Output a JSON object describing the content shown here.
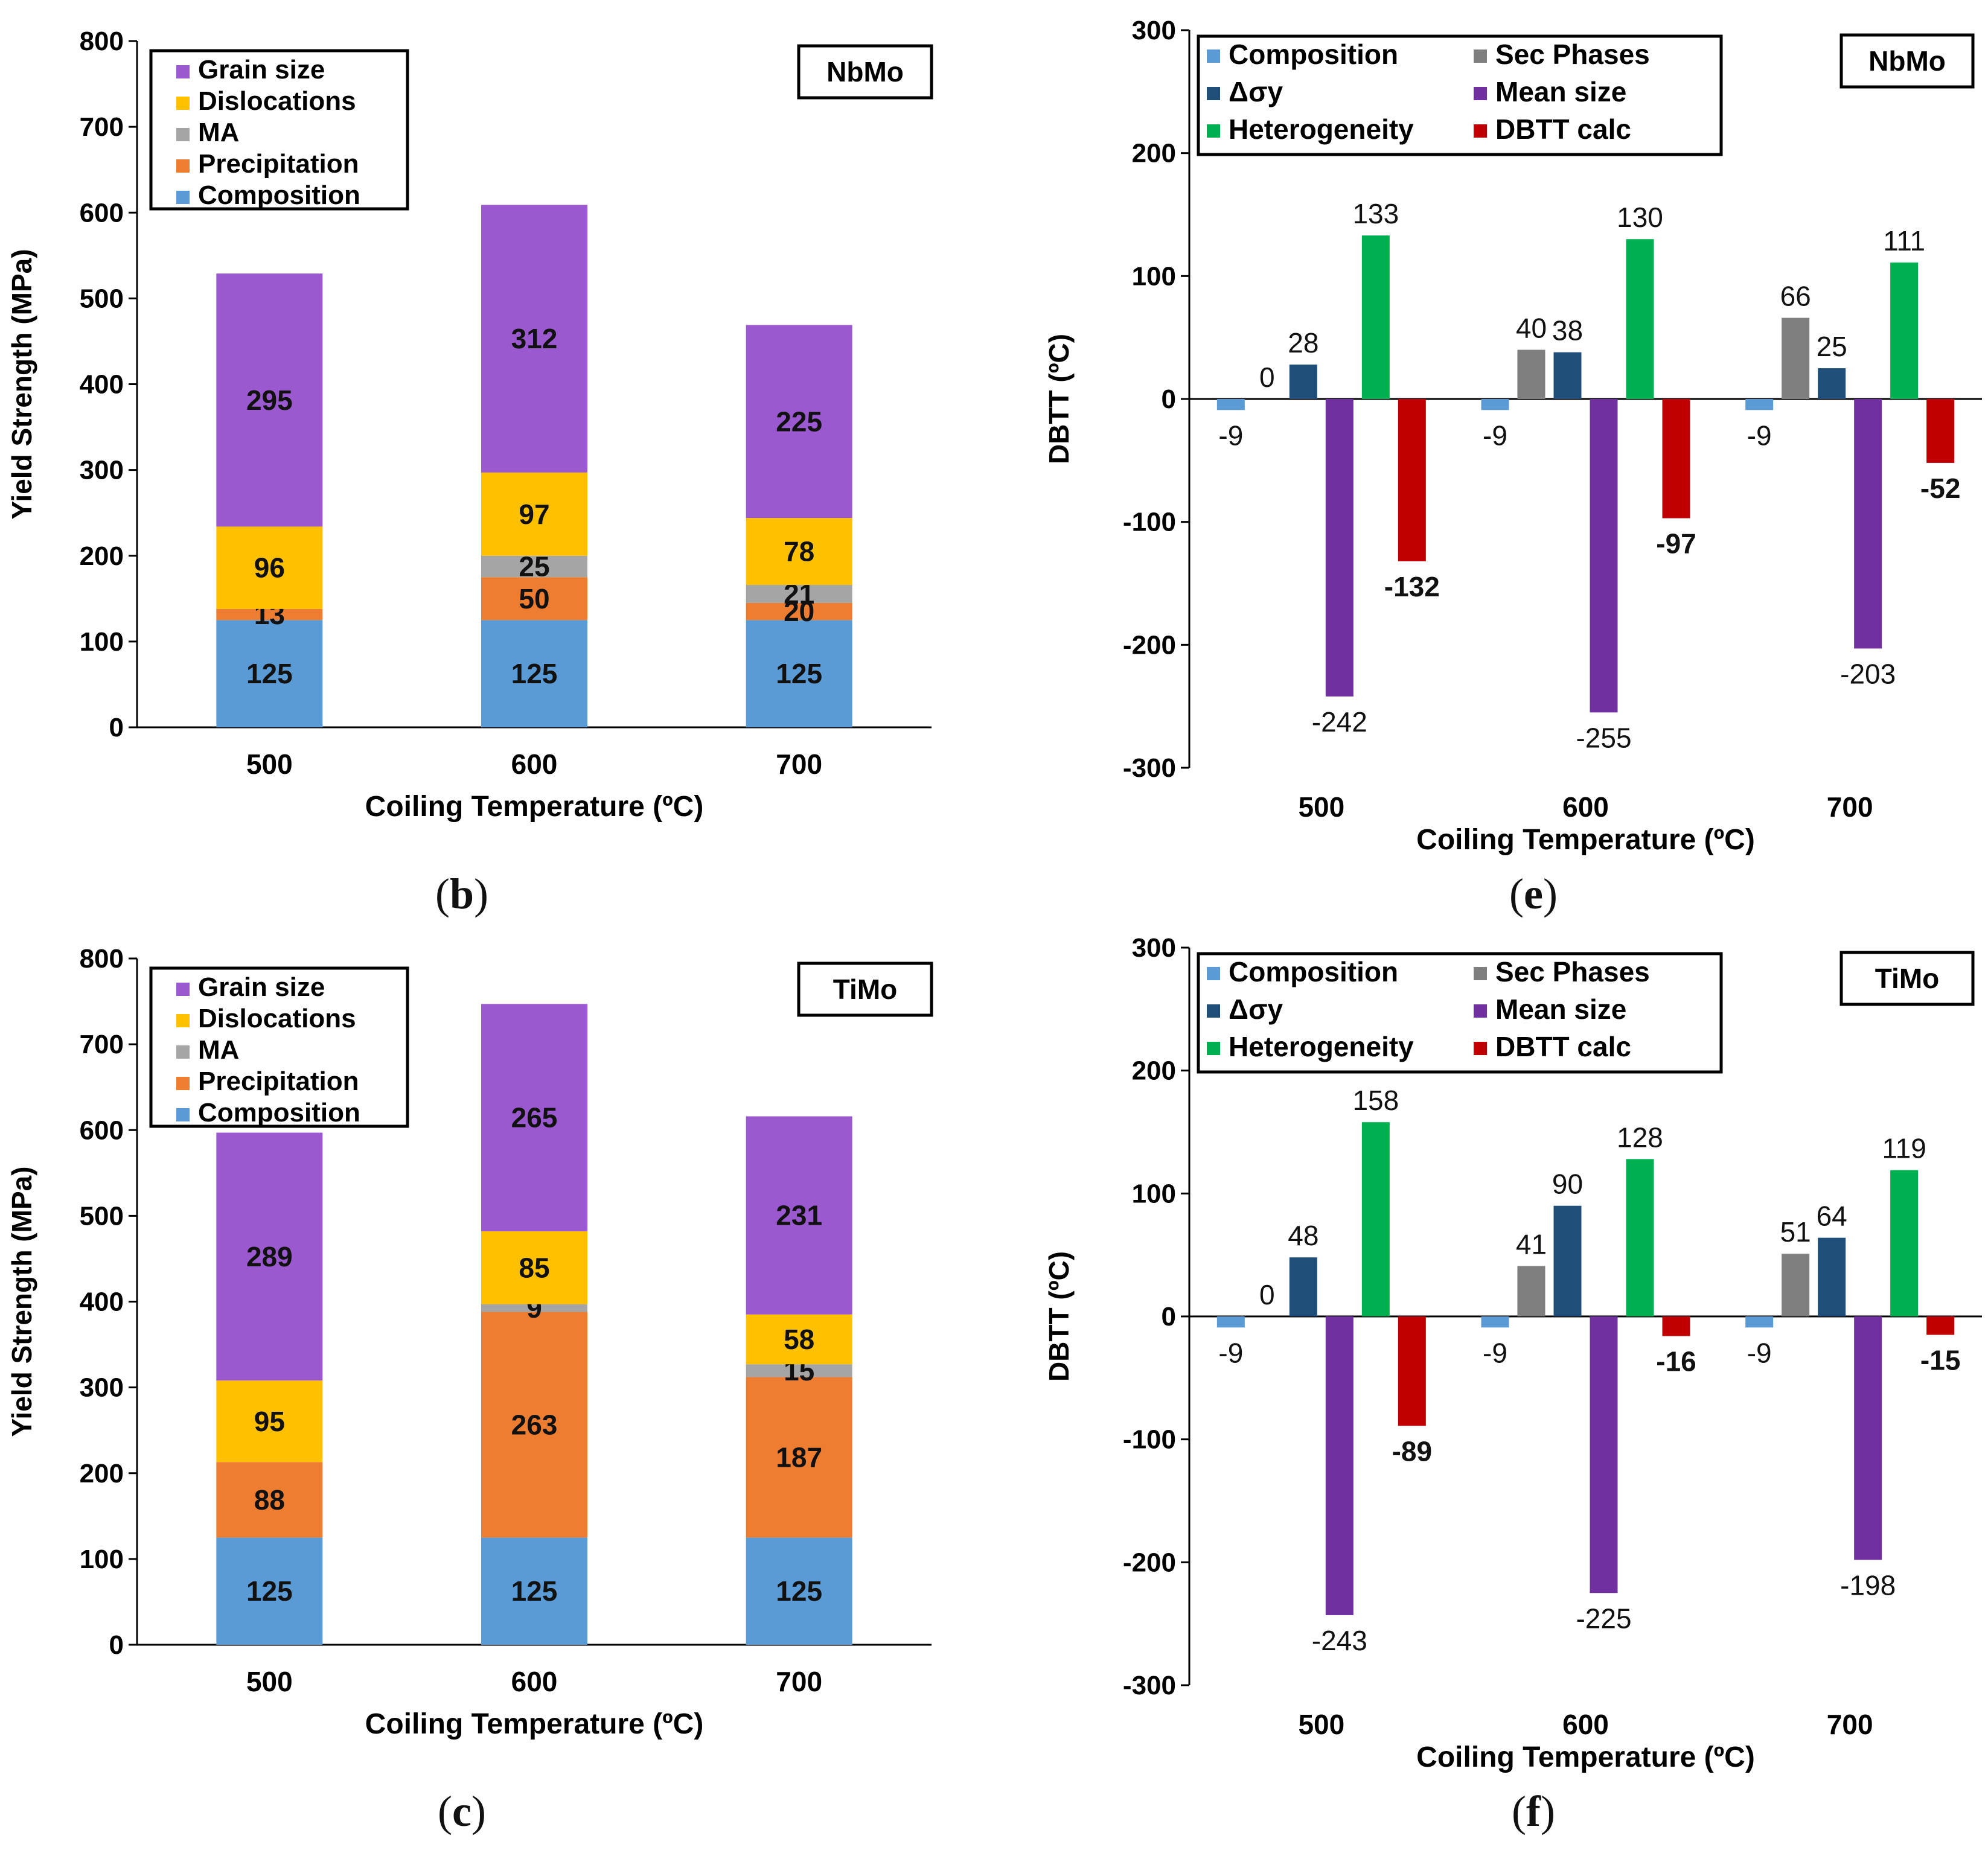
{
  "figure": {
    "captions": [
      {
        "open": "(",
        "letter": "b",
        "close": ")"
      },
      {
        "open": "(",
        "letter": "e",
        "close": ")"
      },
      {
        "open": "(",
        "letter": "c",
        "close": ")"
      },
      {
        "open": "(",
        "letter": "f",
        "close": ")"
      }
    ]
  },
  "chart_data": [
    {
      "id": "b",
      "type": "bar",
      "stacked": true,
      "tag": "NbMo",
      "xlabel": "Coiling Temperature (ºC)",
      "ylabel": "Yield Strength (MPa)",
      "ylim": [
        0,
        800
      ],
      "yticks": [
        0,
        100,
        200,
        300,
        400,
        500,
        600,
        700,
        800
      ],
      "categories": [
        "500",
        "600",
        "700"
      ],
      "legend": [
        "Grain size",
        "Dislocations",
        "MA",
        "Precipitation",
        "Composition"
      ],
      "series": [
        {
          "name": "Composition",
          "color": "#5B9BD5",
          "values": [
            125,
            125,
            125
          ]
        },
        {
          "name": "Precipitation",
          "color": "#ED7D31",
          "values": [
            13,
            50,
            20
          ]
        },
        {
          "name": "MA",
          "color": "#A5A5A5",
          "values": [
            0,
            25,
            21
          ]
        },
        {
          "name": "Dislocations",
          "color": "#FFC000",
          "values": [
            96,
            97,
            78
          ]
        },
        {
          "name": "Grain size",
          "color": "#9B59D0",
          "values": [
            295,
            312,
            225
          ]
        }
      ]
    },
    {
      "id": "e",
      "type": "bar",
      "tag": "NbMo",
      "xlabel": "Coiling Temperature (ºC)",
      "ylabel": "DBTT (ºC)",
      "ylim": [
        -300,
        300
      ],
      "yticks": [
        -300,
        -200,
        -100,
        0,
        100,
        200,
        300
      ],
      "categories": [
        "500",
        "600",
        "700"
      ],
      "legend": [
        "Composition",
        "Sec Phases",
        "Δσy",
        "Mean size",
        "Heterogeneity",
        "DBTT calc"
      ],
      "series": [
        {
          "name": "Composition",
          "color": "#5B9BD5",
          "values": [
            -9,
            -9,
            -9
          ]
        },
        {
          "name": "Sec Phases",
          "color": "#7F7F7F",
          "values": [
            0,
            40,
            66
          ]
        },
        {
          "name": "Δσy",
          "color": "#1F4E79",
          "values": [
            28,
            38,
            25
          ]
        },
        {
          "name": "Mean size",
          "color": "#7030A0",
          "values": [
            -242,
            -255,
            -203
          ]
        },
        {
          "name": "Heterogeneity",
          "color": "#00B050",
          "values": [
            133,
            130,
            111
          ]
        },
        {
          "name": "DBTT calc",
          "color": "#C00000",
          "values": [
            -132,
            -97,
            -52
          ]
        }
      ]
    },
    {
      "id": "c",
      "type": "bar",
      "stacked": true,
      "tag": "TiMo",
      "xlabel": "Coiling Temperature (ºC)",
      "ylabel": "Yield Strength (MPa)",
      "ylim": [
        0,
        800
      ],
      "yticks": [
        0,
        100,
        200,
        300,
        400,
        500,
        600,
        700,
        800
      ],
      "categories": [
        "500",
        "600",
        "700"
      ],
      "legend": [
        "Grain size",
        "Dislocations",
        "MA",
        "Precipitation",
        "Composition"
      ],
      "series": [
        {
          "name": "Composition",
          "color": "#5B9BD5",
          "values": [
            125,
            125,
            125
          ]
        },
        {
          "name": "Precipitation",
          "color": "#ED7D31",
          "values": [
            88,
            263,
            187
          ]
        },
        {
          "name": "MA",
          "color": "#A5A5A5",
          "values": [
            0,
            9,
            15
          ]
        },
        {
          "name": "Dislocations",
          "color": "#FFC000",
          "values": [
            95,
            85,
            58
          ]
        },
        {
          "name": "Grain size",
          "color": "#9B59D0",
          "values": [
            289,
            265,
            231
          ]
        }
      ]
    },
    {
      "id": "f",
      "type": "bar",
      "tag": "TiMo",
      "xlabel": "Coiling Temperature (ºC)",
      "ylabel": "DBTT (ºC)",
      "ylim": [
        -300,
        300
      ],
      "yticks": [
        -300,
        -200,
        -100,
        0,
        100,
        200,
        300
      ],
      "categories": [
        "500",
        "600",
        "700"
      ],
      "legend": [
        "Composition",
        "Sec Phases",
        "Δσy",
        "Mean size",
        "Heterogeneity",
        "DBTT calc"
      ],
      "series": [
        {
          "name": "Composition",
          "color": "#5B9BD5",
          "values": [
            -9,
            -9,
            -9
          ]
        },
        {
          "name": "Sec Phases",
          "color": "#7F7F7F",
          "values": [
            0,
            41,
            51
          ]
        },
        {
          "name": "Δσy",
          "color": "#1F4E79",
          "values": [
            48,
            90,
            64
          ]
        },
        {
          "name": "Mean size",
          "color": "#7030A0",
          "values": [
            -243,
            -225,
            -198
          ]
        },
        {
          "name": "Heterogeneity",
          "color": "#00B050",
          "values": [
            158,
            128,
            119
          ]
        },
        {
          "name": "DBTT calc",
          "color": "#C00000",
          "values": [
            -89,
            -16,
            -15
          ]
        }
      ]
    }
  ]
}
